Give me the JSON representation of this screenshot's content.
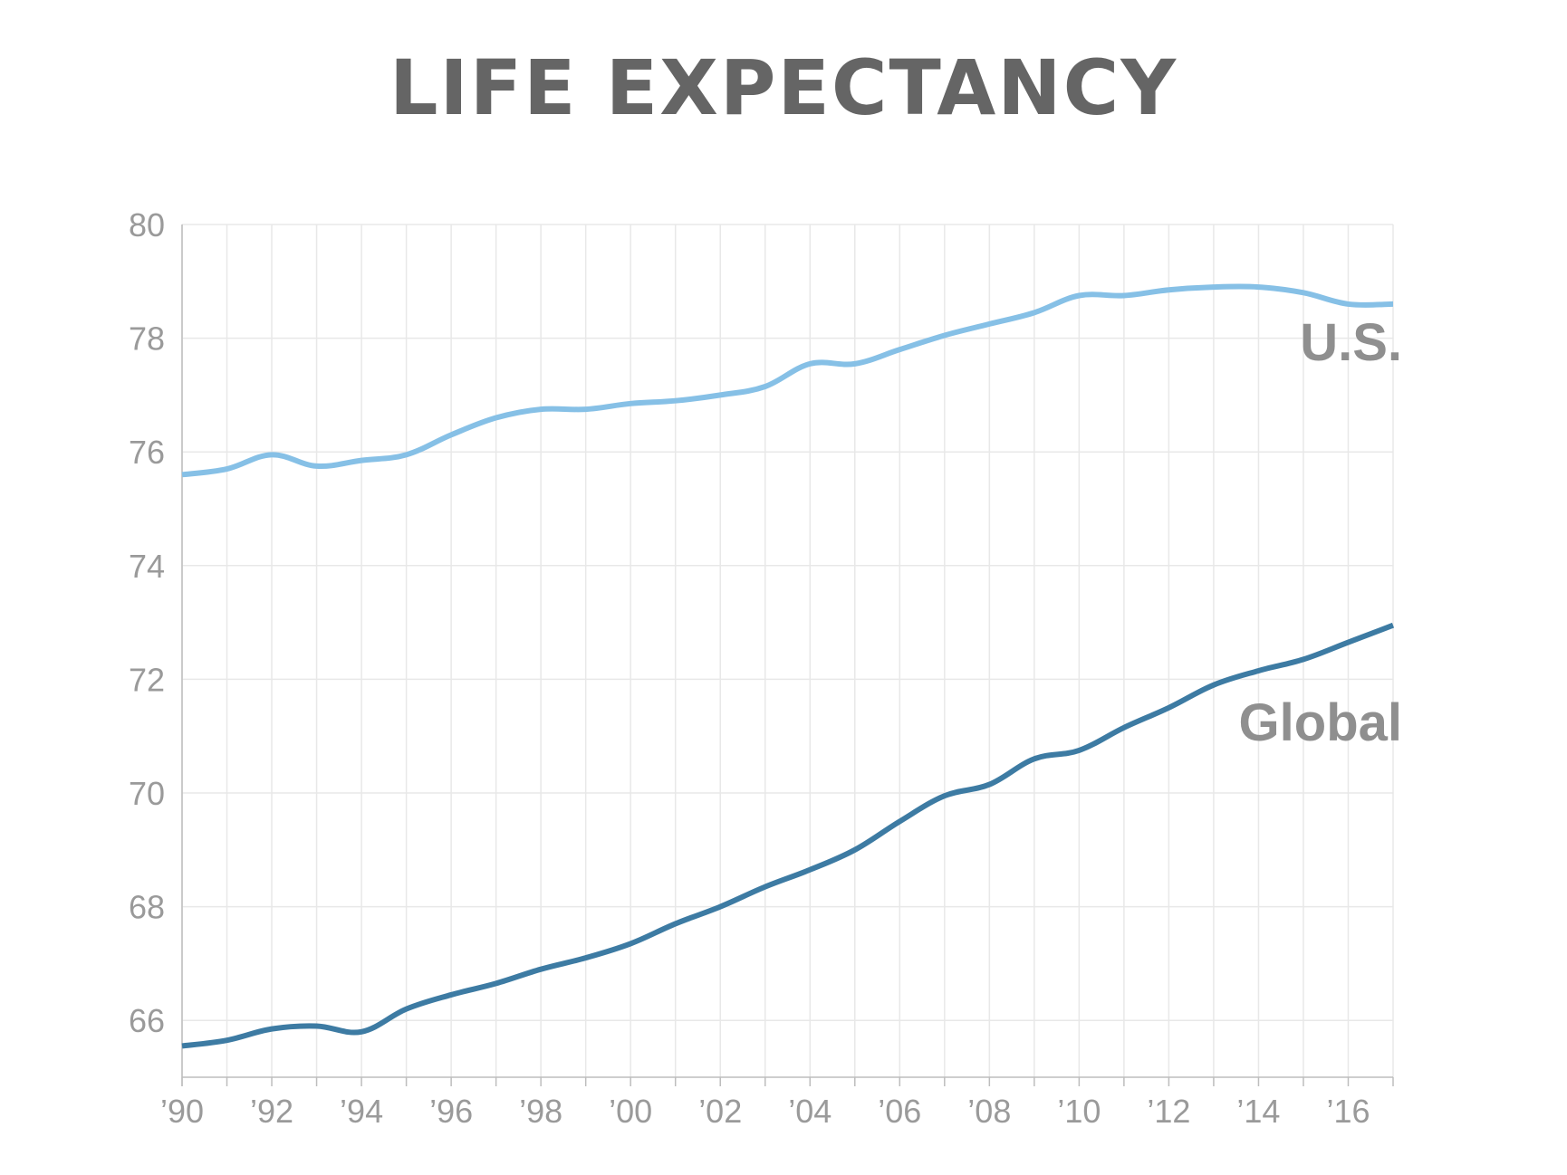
{
  "chart_data": {
    "type": "line",
    "title": "LIFE EXPECTANCY",
    "x": [
      1990,
      1991,
      1992,
      1993,
      1994,
      1995,
      1996,
      1997,
      1998,
      1999,
      2000,
      2001,
      2002,
      2003,
      2004,
      2005,
      2006,
      2007,
      2008,
      2009,
      2010,
      2011,
      2012,
      2013,
      2014,
      2015,
      2016,
      2017
    ],
    "x_tick_values": [
      1990,
      1992,
      1994,
      1996,
      1998,
      2000,
      2002,
      2004,
      2006,
      2008,
      2010,
      2012,
      2014,
      2016
    ],
    "x_tick_labels": [
      "’90",
      "’92",
      "’94",
      "’96",
      "’98",
      "’00",
      "’02",
      "’04",
      "’06",
      "’08",
      "’10",
      "’12",
      "’14",
      "’16"
    ],
    "y_ticks": [
      66,
      68,
      70,
      72,
      74,
      76,
      78,
      80
    ],
    "xlim": [
      1990,
      2017
    ],
    "ylim": [
      65,
      80
    ],
    "grid": true,
    "series": [
      {
        "name": "U.S.",
        "color": "#86c0e6",
        "values": [
          75.6,
          75.7,
          75.95,
          75.75,
          75.85,
          75.95,
          76.3,
          76.6,
          76.75,
          76.75,
          76.85,
          76.9,
          77.0,
          77.15,
          77.55,
          77.55,
          77.8,
          78.05,
          78.25,
          78.45,
          78.75,
          78.75,
          78.85,
          78.9,
          78.9,
          78.8,
          78.6,
          78.6
        ]
      },
      {
        "name": "Global",
        "color": "#3d7ba3",
        "values": [
          65.55,
          65.65,
          65.85,
          65.9,
          65.8,
          66.2,
          66.45,
          66.65,
          66.9,
          67.1,
          67.35,
          67.7,
          68.0,
          68.35,
          68.65,
          69.0,
          69.5,
          69.95,
          70.15,
          70.6,
          70.75,
          71.15,
          71.5,
          71.9,
          72.15,
          72.35,
          72.65,
          72.95
        ]
      }
    ]
  }
}
